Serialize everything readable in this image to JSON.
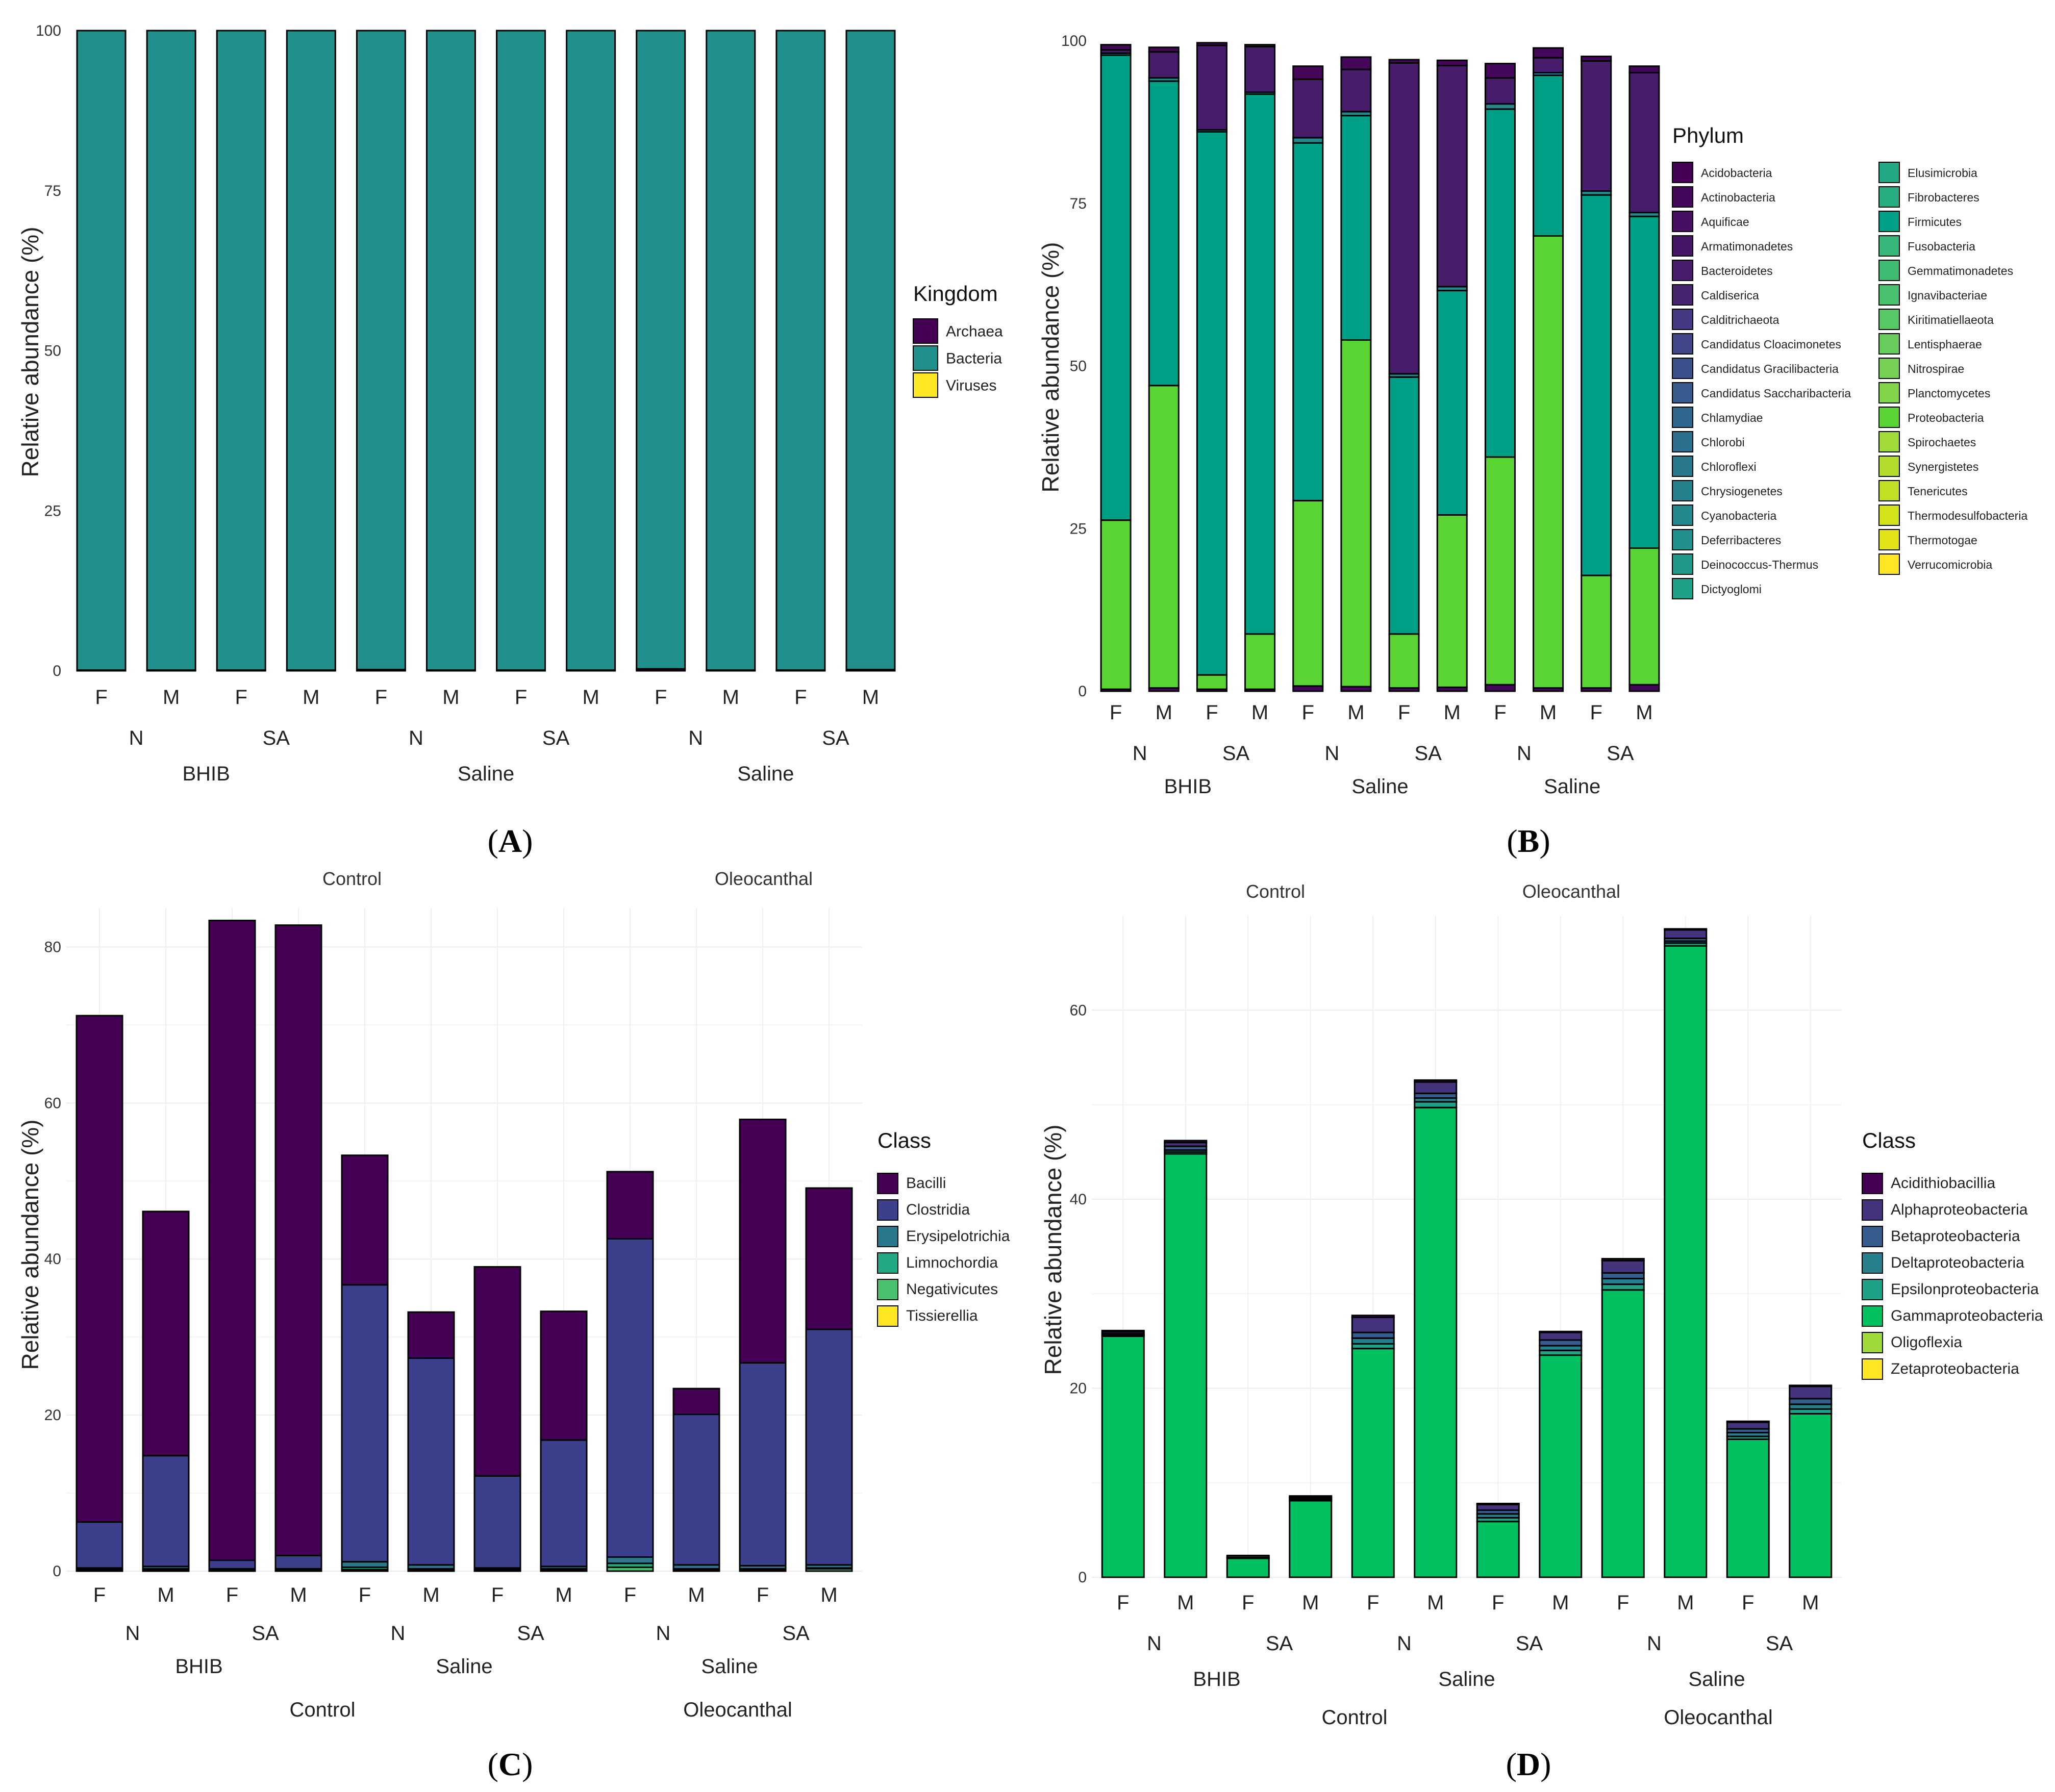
{
  "panel_labels": [
    "A",
    "B",
    "C",
    "D"
  ],
  "chart_data": [
    {
      "panel": "A",
      "type": "bar",
      "stacked": true,
      "ylabel": "Relative abundance (%)",
      "ylim": [
        0,
        100
      ],
      "yticks": [
        0,
        25,
        50,
        75,
        100
      ],
      "x_sex": [
        "F",
        "M",
        "F",
        "M",
        "F",
        "M",
        "F",
        "M",
        "F",
        "M",
        "F",
        "M"
      ],
      "x_infection": [
        "N",
        "SA",
        "N",
        "SA",
        "N",
        "SA"
      ],
      "x_treatment": [
        "BHIB",
        "Saline",
        "Saline"
      ],
      "x_group": [],
      "top_labels": [],
      "legend_title": "Kingdom",
      "legend": [
        {
          "name": "Archaea",
          "color": "#440154"
        },
        {
          "name": "Bacteria",
          "color": "#21908C"
        },
        {
          "name": "Viruses",
          "color": "#FDE725"
        }
      ],
      "series": [
        {
          "name": "Archaea",
          "values": [
            0.1,
            0.1,
            0.1,
            0.1,
            0.2,
            0.1,
            0.1,
            0.1,
            0.3,
            0.1,
            0.1,
            0.2
          ]
        },
        {
          "name": "Bacteria",
          "values": [
            99.9,
            99.9,
            99.9,
            99.9,
            99.8,
            99.9,
            99.9,
            99.9,
            99.7,
            99.9,
            99.9,
            99.8
          ]
        },
        {
          "name": "Viruses",
          "values": [
            0,
            0,
            0,
            0,
            0,
            0,
            0,
            0,
            0,
            0,
            0,
            0
          ]
        }
      ]
    },
    {
      "panel": "B",
      "type": "bar",
      "stacked": true,
      "ylabel": "Relative abundance (%)",
      "ylim": [
        0,
        100
      ],
      "yticks": [
        0,
        25,
        50,
        75,
        100
      ],
      "x_sex": [
        "F",
        "M",
        "F",
        "M",
        "F",
        "M",
        "F",
        "M",
        "F",
        "M",
        "F",
        "M"
      ],
      "x_infection": [
        "N",
        "SA",
        "N",
        "SA",
        "N",
        "SA"
      ],
      "x_treatment": [
        "BHIB",
        "Saline",
        "Saline"
      ],
      "x_group": [],
      "top_labels": [],
      "legend_title": "Phylum",
      "legend": [
        {
          "name": "Acidobacteria",
          "color": "#440154"
        },
        {
          "name": "Actinobacteria",
          "color": "#45075A"
        },
        {
          "name": "Aquificae",
          "color": "#470E61"
        },
        {
          "name": "Armatimonadetes",
          "color": "#471565"
        },
        {
          "name": "Bacteroidetes",
          "color": "#471C6B"
        },
        {
          "name": "Caldiserica",
          "color": "#46256F"
        },
        {
          "name": "Calditrichaeota",
          "color": "#443A83"
        },
        {
          "name": "Candidatus Cloacimonetes",
          "color": "#404688"
        },
        {
          "name": "Candidatus Gracilibacteria",
          "color": "#3C508B"
        },
        {
          "name": "Candidatus Saccharibacteria",
          "color": "#375B8D"
        },
        {
          "name": "Chlamydiae",
          "color": "#31668E"
        },
        {
          "name": "Chlorobi",
          "color": "#2D708E"
        },
        {
          "name": "Chloroflexi",
          "color": "#2A788E"
        },
        {
          "name": "Chrysiogenetes",
          "color": "#26818E"
        },
        {
          "name": "Cyanobacteria",
          "color": "#23898E"
        },
        {
          "name": "Deferribacteres",
          "color": "#20918C"
        },
        {
          "name": "Deinococcus-Thermus",
          "color": "#1F998A"
        },
        {
          "name": "Dictyoglomi",
          "color": "#1FA187"
        },
        {
          "name": "Elusimicrobia",
          "color": "#22A884"
        },
        {
          "name": "Fibrobacteres",
          "color": "#27AD81"
        },
        {
          "name": "Firmicutes",
          "color": "#00A087"
        },
        {
          "name": "Fusobacteria",
          "color": "#35B779"
        },
        {
          "name": "Gemmatimonadetes",
          "color": "#3EBC74"
        },
        {
          "name": "Ignavibacteriae",
          "color": "#4AC16D"
        },
        {
          "name": "Kiritimatiellaeota",
          "color": "#58C765"
        },
        {
          "name": "Lentisphaerae",
          "color": "#67CC5C"
        },
        {
          "name": "Nitrospirae",
          "color": "#75D054"
        },
        {
          "name": "Planctomycetes",
          "color": "#84D44B"
        },
        {
          "name": "Proteobacteria",
          "color": "#59D432"
        },
        {
          "name": "Spirochaetes",
          "color": "#A2DA37"
        },
        {
          "name": "Synergistetes",
          "color": "#B2DD2D"
        },
        {
          "name": "Tenericutes",
          "color": "#C2DF23"
        },
        {
          "name": "Thermodesulfobacteria",
          "color": "#D2E21B"
        },
        {
          "name": "Thermotogae",
          "color": "#E2E418"
        },
        {
          "name": "Verrucomicrobia",
          "color": "#FDE725"
        }
      ],
      "series": [
        {
          "name": "Actinobacteria",
          "values": [
            0.3,
            0.5,
            0.3,
            0.3,
            0.8,
            0.7,
            0.5,
            0.6,
            1.0,
            0.5,
            0.5,
            1.0
          ]
        },
        {
          "name": "Proteobacteria",
          "values": [
            26.0,
            46.5,
            2.2,
            8.5,
            28.5,
            53.3,
            8.3,
            26.5,
            35.0,
            69.5,
            17.3,
            21.0
          ]
        },
        {
          "name": "Firmicutes",
          "values": [
            71.5,
            46.8,
            83.5,
            83.0,
            55.0,
            34.5,
            39.5,
            34.5,
            53.5,
            24.7,
            58.5,
            51.0
          ]
        },
        {
          "name": "Cyanobacteria",
          "values": [
            0.3,
            0.5,
            0.3,
            0.3,
            0.8,
            0.6,
            0.5,
            0.6,
            0.8,
            0.4,
            0.6,
            0.6
          ]
        },
        {
          "name": "Bacteroidetes",
          "values": [
            0.5,
            4.0,
            13.0,
            7.0,
            9.0,
            6.5,
            47.8,
            34.0,
            4.0,
            2.3,
            20.0,
            21.5
          ]
        },
        {
          "name": "Actinobacteria (upper)",
          "values": [
            0.8,
            0.7,
            0.4,
            0.3,
            2.0,
            1.9,
            0.5,
            0.8,
            2.2,
            1.5,
            0.7,
            1.0
          ]
        }
      ]
    },
    {
      "panel": "C",
      "type": "bar",
      "stacked": true,
      "ylabel": "Relative abundance (%)",
      "ylim": [
        0,
        85
      ],
      "yticks": [
        0,
        20,
        40,
        60,
        80
      ],
      "x_sex": [
        "F",
        "M",
        "F",
        "M",
        "F",
        "M",
        "F",
        "M",
        "F",
        "M",
        "F",
        "M"
      ],
      "x_infection": [
        "N",
        "SA",
        "N",
        "SA",
        "N",
        "SA"
      ],
      "x_treatment": [
        "BHIB",
        "Saline",
        "Saline"
      ],
      "x_group": [
        "Control",
        "Oleocanthal"
      ],
      "top_labels": [
        "Control",
        "Oleocanthal"
      ],
      "legend_title": "Class",
      "legend": [
        {
          "name": "Bacilli",
          "color": "#440154"
        },
        {
          "name": "Clostridia",
          "color": "#3B3F8C"
        },
        {
          "name": "Erysipelotrichia",
          "color": "#2A788E"
        },
        {
          "name": "Limnochordia",
          "color": "#22A884"
        },
        {
          "name": "Negativicutes",
          "color": "#4AC16D"
        },
        {
          "name": "Tissierellia",
          "color": "#FDE725"
        }
      ],
      "series": [
        {
          "name": "Negativicutes",
          "values": [
            0.2,
            0.2,
            0.1,
            0.1,
            0.2,
            0.2,
            0.2,
            0.2,
            0.5,
            0.2,
            0.2,
            0.3
          ]
        },
        {
          "name": "Limnochordia",
          "values": [
            0.1,
            0.1,
            0.1,
            0.1,
            0.3,
            0.1,
            0.1,
            0.1,
            0.5,
            0.1,
            0.1,
            0.1
          ]
        },
        {
          "name": "Erysipelotrichia",
          "values": [
            0.1,
            0.3,
            0.1,
            0.1,
            0.7,
            0.5,
            0.1,
            0.3,
            0.8,
            0.5,
            0.4,
            0.4
          ]
        },
        {
          "name": "Clostridia",
          "values": [
            5.9,
            14.2,
            1.1,
            1.7,
            35.5,
            26.5,
            11.8,
            16.2,
            40.8,
            19.3,
            26.0,
            30.2
          ]
        },
        {
          "name": "Bacilli",
          "values": [
            64.9,
            31.3,
            82.0,
            80.8,
            16.6,
            5.9,
            26.8,
            16.5,
            8.6,
            3.3,
            31.2,
            18.1
          ]
        }
      ]
    },
    {
      "panel": "D",
      "type": "bar",
      "stacked": true,
      "ylabel": "Relative abundance (%)",
      "ylim": [
        0,
        70
      ],
      "yticks": [
        0,
        20,
        40,
        60
      ],
      "x_sex": [
        "F",
        "M",
        "F",
        "M",
        "F",
        "M",
        "F",
        "M",
        "F",
        "M",
        "F",
        "M"
      ],
      "x_infection": [
        "N",
        "SA",
        "N",
        "SA",
        "N",
        "SA"
      ],
      "x_treatment": [
        "BHIB",
        "Saline",
        "Saline"
      ],
      "x_group": [
        "Control",
        "Oleocanthal"
      ],
      "top_labels": [
        "Control",
        "Oleocanthal"
      ],
      "legend_title": "Class",
      "legend": [
        {
          "name": "Acidithiobacillia",
          "color": "#440154"
        },
        {
          "name": "Alphaproteobacteria",
          "color": "#46337E"
        },
        {
          "name": "Betaproteobacteria",
          "color": "#365C8D"
        },
        {
          "name": "Deltaproteobacteria",
          "color": "#277F8E"
        },
        {
          "name": "Epsilonproteobacteria",
          "color": "#1FA187"
        },
        {
          "name": "Gammaproteobacteria",
          "color": "#00C060"
        },
        {
          "name": "Oligoflexia",
          "color": "#9FDA3A"
        },
        {
          "name": "Zetaproteobacteria",
          "color": "#FDE725"
        }
      ],
      "series": [
        {
          "name": "Gammaproteobacteria",
          "values": [
            25.5,
            44.8,
            2.0,
            8.1,
            24.2,
            49.7,
            5.9,
            23.5,
            30.4,
            66.8,
            14.6,
            17.3
          ]
        },
        {
          "name": "Epsilonproteobacteria",
          "values": [
            0.1,
            0.2,
            0.1,
            0.1,
            0.5,
            0.6,
            0.4,
            0.5,
            0.6,
            0.3,
            0.3,
            0.5
          ]
        },
        {
          "name": "Deltaproteobacteria",
          "values": [
            0.1,
            0.2,
            0.0,
            0.1,
            0.6,
            0.4,
            0.4,
            0.5,
            0.6,
            0.2,
            0.4,
            0.5
          ]
        },
        {
          "name": "Betaproteobacteria",
          "values": [
            0.1,
            0.4,
            0.0,
            0.1,
            0.6,
            0.5,
            0.4,
            0.6,
            0.6,
            0.3,
            0.4,
            0.6
          ]
        },
        {
          "name": "Alphaproteobacteria",
          "values": [
            0.2,
            0.4,
            0.2,
            0.1,
            1.6,
            1.2,
            0.6,
            0.8,
            1.3,
            0.9,
            0.7,
            1.3
          ]
        },
        {
          "name": "Acidithiobacillia",
          "values": [
            0.1,
            0.2,
            0.0,
            0.1,
            0.2,
            0.2,
            0.1,
            0.1,
            0.2,
            0.1,
            0.1,
            0.1
          ]
        }
      ]
    }
  ]
}
